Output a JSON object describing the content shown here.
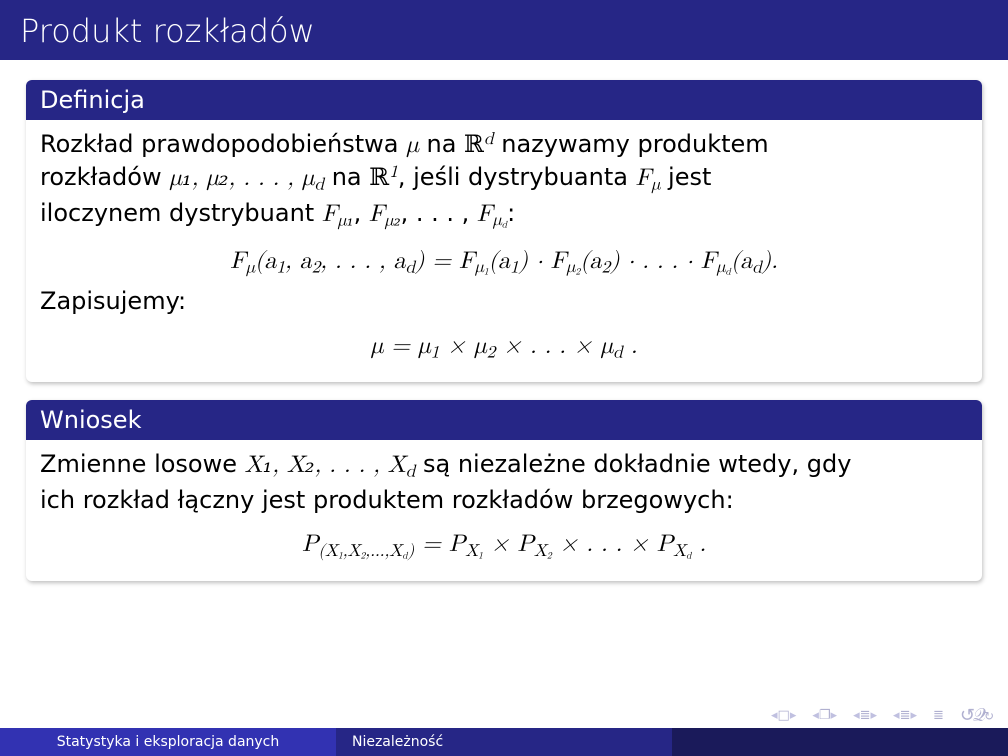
{
  "colors": {
    "header_bg": "#262686",
    "block_header_bg": "#262686",
    "footer_seg1": "#3232b2",
    "footer_seg2": "#262686",
    "footer_seg3": "#1a1a5a",
    "text": "#000000",
    "header_text": "#ffffff",
    "nav_icon": "#c0c0e0"
  },
  "title": "Produkt rozkładów",
  "block1": {
    "header": "Definicja",
    "line1_a": "Rozkład prawdopodobieństwa ",
    "line1_mu": "μ",
    "line1_b": " na ",
    "line1_R": "ℝ",
    "line1_d": "d",
    "line1_c": " nazywamy produktem",
    "line2_a": "rozkładów ",
    "line2_mus": "μ₁, μ₂, . . . , μ",
    "line2_mud": "d",
    "line2_b": " na ",
    "line2_R": "ℝ",
    "line2_1": "1",
    "line2_c": ", jeśli dystrybuanta ",
    "line2_F": "F",
    "line2_Fmu": "μ",
    "line2_d": " jest",
    "line3_a": "iloczynem dystrybuant ",
    "line3_Fs": "F",
    "line3_mu1": "μ₁",
    "line3_c1": ", ",
    "line3_mu2": "μ₂",
    "line3_c2": ", . . . , ",
    "line3_mud": "μ",
    "line3_mudd": "d",
    "line3_colon": ":",
    "formula": "F_μ(a₁, a₂, . . . , a_d) = F_{μ₁}(a₁) · F_{μ₂}(a₂) · . . . · F_{μ_d}(a_d).",
    "zap": "Zapisujemy:",
    "formula2": "μ = μ₁ × μ₂ × . . . × μ_d ."
  },
  "block2": {
    "header": "Wniosek",
    "line1_a": "Zmienne losowe ",
    "line1_X": "X₁, X₂, . . . , X",
    "line1_d": "d",
    "line1_b": " są niezależne dokładnie wtedy, gdy",
    "line2": "ich rozkład łączny jest produktem rozkładów brzegowych:",
    "formula": "P_{(X₁,X₂,...,X_d)} = P_{X₁} × P_{X₂} × . . . × P_{X_d} ."
  },
  "footer": {
    "left": "Statystyka i eksploracja danych",
    "mid": "Niezależność"
  }
}
